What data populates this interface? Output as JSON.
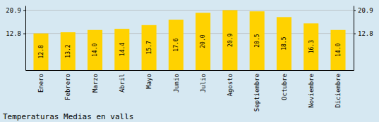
{
  "chart_data": {
    "type": "bar",
    "title": "Temperaturas Medias en valls",
    "categories": [
      "Enero",
      "Febrero",
      "Marzo",
      "Abril",
      "Mayo",
      "Junio",
      "Julio",
      "Agosto",
      "Septiembre",
      "Octubre",
      "Noviembre",
      "Diciembre"
    ],
    "values": [
      12.8,
      13.2,
      14.0,
      14.4,
      15.7,
      17.6,
      20.0,
      20.9,
      20.5,
      18.5,
      16.3,
      14.0
    ],
    "value_labels": [
      "12.8",
      "13.2",
      "14.0",
      "14.4",
      "15.7",
      "17.6",
      "20.0",
      "20.9",
      "20.5",
      "18.5",
      "16.3",
      "14.0"
    ],
    "color": "#FFD200",
    "ylim": [
      0,
      22.5
    ],
    "yticks": [
      12.8,
      20.9
    ],
    "y2lim": [
      0,
      22.5
    ],
    "y2ticks": [
      12.8,
      20.9
    ],
    "grid": true,
    "data_labels": true
  }
}
